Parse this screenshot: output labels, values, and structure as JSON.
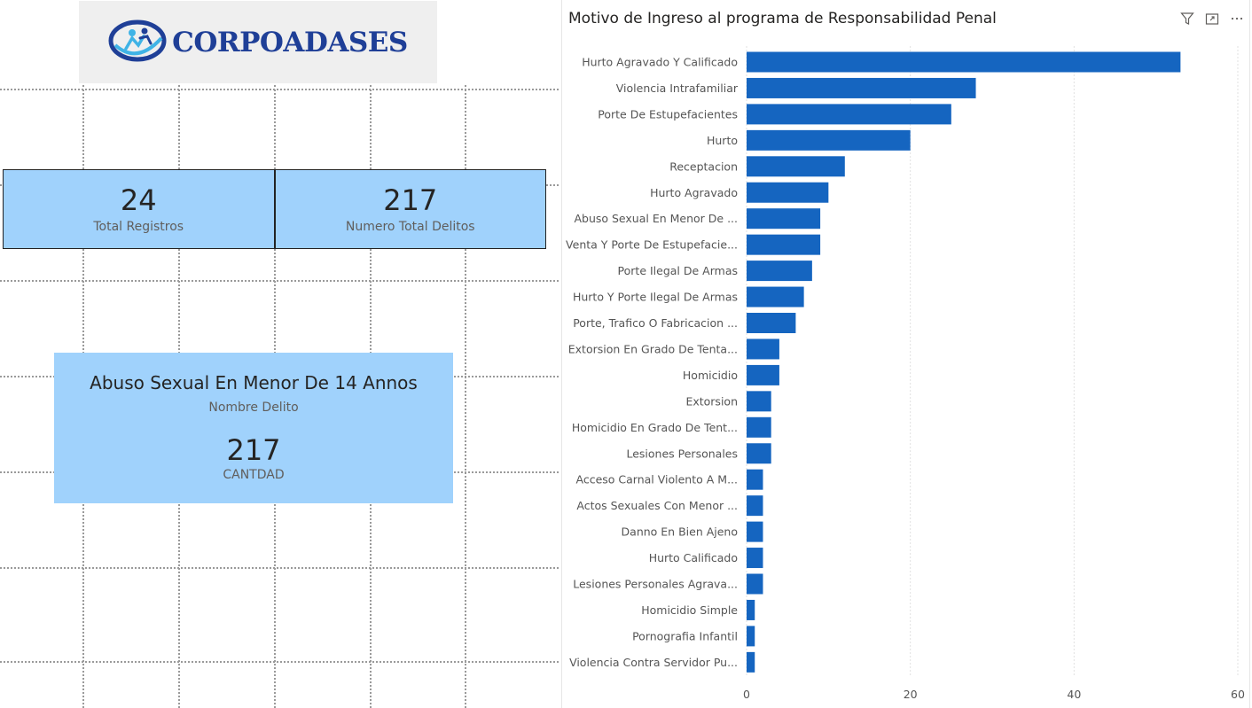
{
  "logo": {
    "text": "CORPOADASES"
  },
  "kpis": [
    {
      "value": "24",
      "label": "Total Registros"
    },
    {
      "value": "217",
      "label": "Numero Total Delitos"
    }
  ],
  "card": {
    "title": "Abuso Sexual En Menor De 14 Annos",
    "subtitle": "Nombre Delito",
    "value": "217",
    "label": "CANTDAD"
  },
  "chart": {
    "title": "Motivo de Ingreso al programa de Responsabilidad Penal",
    "icons": [
      "filter-icon",
      "focus-mode-icon",
      "more-options-icon"
    ]
  },
  "colors": {
    "bar": "#1565c0",
    "kpi_background": "#a0d2fc"
  },
  "chart_data": {
    "type": "bar",
    "orientation": "horizontal",
    "title": "Motivo de Ingreso al programa de Responsabilidad Penal",
    "categories": [
      "Hurto Agravado Y Calificado",
      "Violencia Intrafamiliar",
      "Porte De Estupefacientes",
      "Hurto",
      "Receptacion",
      "Hurto Agravado",
      "Abuso Sexual En Menor De ...",
      "Venta Y Porte De Estupefacie...",
      "Porte Ilegal De Armas",
      "Hurto Y Porte Ilegal De Armas",
      "Porte, Trafico O Fabricacion ...",
      "Extorsion En Grado De Tenta...",
      "Homicidio",
      "Extorsion",
      "Homicidio En Grado De Tent...",
      "Lesiones Personales",
      "Acceso Carnal Violento A M...",
      "Actos Sexuales Con Menor ...",
      "Danno En Bien Ajeno",
      "Hurto Calificado",
      "Lesiones Personales Agrava...",
      "Homicidio Simple",
      "Pornografia Infantil",
      "Violencia Contra Servidor Pu..."
    ],
    "values": [
      53,
      28,
      25,
      20,
      12,
      10,
      9,
      9,
      8,
      7,
      6,
      4,
      4,
      3,
      3,
      3,
      2,
      2,
      2,
      2,
      2,
      1,
      1,
      1
    ],
    "xlim": [
      0,
      60
    ],
    "xticks": [
      "0",
      "20",
      "40",
      "60"
    ],
    "grid": true
  }
}
